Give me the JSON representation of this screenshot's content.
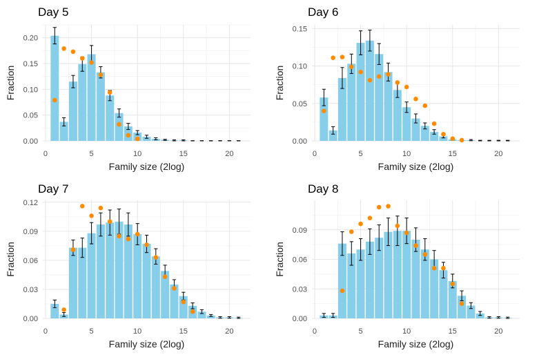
{
  "style": {
    "bar_color": "#87CEEB",
    "point_color": "#FF8C00",
    "error_color": "#000000",
    "grid_color": "#e6e6e6"
  },
  "chart_data": [
    {
      "type": "bar",
      "title": "Day 5",
      "xlabel": "Family size (2log)",
      "ylabel": "Fraction",
      "xlim": [
        -0.3,
        22.3
      ],
      "ylim": [
        0,
        0.225
      ],
      "xticks": [
        0,
        5,
        10,
        15,
        20
      ],
      "yticks": [
        0,
        0.05,
        0.1,
        0.15,
        0.2
      ],
      "ytick_labels": [
        "0.00",
        "0.05",
        "0.10",
        "0.15",
        "0.20"
      ],
      "grid": true,
      "x": [
        1,
        2,
        3,
        4,
        5,
        6,
        7,
        8,
        9,
        10,
        11,
        12,
        13,
        14,
        15,
        16,
        17,
        18,
        19,
        20,
        21
      ],
      "bar_values": [
        0.204,
        0.037,
        0.115,
        0.149,
        0.168,
        0.133,
        0.088,
        0.054,
        0.028,
        0.016,
        0.008,
        0.004,
        0.002,
        0.001,
        0.001,
        0,
        0,
        0,
        0,
        0,
        0
      ],
      "error": [
        0.016,
        0.008,
        0.012,
        0.014,
        0.017,
        0.011,
        0.01,
        0.008,
        0.006,
        0.004,
        0.003,
        0.002,
        0.001,
        0.001,
        0.001,
        0.0005,
        0.0005,
        0.0005,
        0.0005,
        0.0005,
        0.0005
      ],
      "point_x": [
        1,
        2,
        3,
        4,
        5,
        6,
        7,
        8,
        9,
        10
      ],
      "point_values": [
        0.079,
        0.179,
        0.173,
        0.16,
        0.152,
        0.128,
        0.094,
        0.032,
        0.011,
        0.004
      ]
    },
    {
      "type": "bar",
      "title": "Day 6",
      "xlabel": "Family size (2log)",
      "ylabel": "Fraction",
      "xlim": [
        -0.3,
        22.3
      ],
      "ylim": [
        0,
        0.155
      ],
      "xticks": [
        0,
        5,
        10,
        15,
        20
      ],
      "yticks": [
        0,
        0.05,
        0.1,
        0.15
      ],
      "ytick_labels": [
        "0.00",
        "0.05",
        "0.10",
        "0.15"
      ],
      "grid": true,
      "x": [
        1,
        2,
        3,
        4,
        5,
        6,
        7,
        8,
        9,
        10,
        11,
        12,
        13,
        14,
        15,
        16,
        17,
        18,
        19,
        20,
        21
      ],
      "bar_values": [
        0.058,
        0.014,
        0.084,
        0.103,
        0.131,
        0.134,
        0.116,
        0.092,
        0.068,
        0.045,
        0.03,
        0.02,
        0.012,
        0.006,
        0.002,
        0.001,
        0.001,
        0,
        0,
        0,
        0
      ],
      "error": [
        0.011,
        0.005,
        0.014,
        0.013,
        0.016,
        0.014,
        0.014,
        0.012,
        0.01,
        0.007,
        0.006,
        0.004,
        0.003,
        0.002,
        0.001,
        0.0008,
        0.0008,
        0.0008,
        0.0008,
        0.0008,
        0.0008
      ],
      "point_x": [
        1,
        2,
        3,
        4,
        5,
        6,
        7,
        8,
        9,
        10,
        11,
        12,
        13,
        14,
        15,
        16
      ],
      "point_values": [
        0.04,
        0.111,
        0.112,
        0.099,
        0.092,
        0.081,
        0.086,
        0.089,
        0.078,
        0.072,
        0.056,
        0.047,
        0.023,
        0.009,
        0.003,
        0.001
      ]
    },
    {
      "type": "bar",
      "title": "Day 7",
      "xlabel": "Family size (2log)",
      "ylabel": "Fraction",
      "xlim": [
        -0.3,
        22.3
      ],
      "ylim": [
        0,
        0.122
      ],
      "xticks": [
        0,
        5,
        10,
        15,
        20
      ],
      "yticks": [
        0,
        0.03,
        0.06,
        0.09,
        0.12
      ],
      "ytick_labels": [
        "0.00",
        "0.03",
        "0.06",
        "0.09",
        "0.12"
      ],
      "grid": true,
      "x": [
        1,
        2,
        3,
        4,
        5,
        6,
        7,
        8,
        9,
        10,
        11,
        12,
        13,
        14,
        15,
        16,
        17,
        18,
        19,
        20,
        21
      ],
      "bar_values": [
        0.015,
        0.004,
        0.073,
        0.073,
        0.088,
        0.097,
        0.099,
        0.1,
        0.097,
        0.087,
        0.077,
        0.064,
        0.049,
        0.035,
        0.023,
        0.013,
        0.007,
        0.003,
        0.001,
        0.001,
        0.0005
      ],
      "error": [
        0.004,
        0.002,
        0.008,
        0.01,
        0.011,
        0.012,
        0.013,
        0.013,
        0.012,
        0.011,
        0.009,
        0.008,
        0.006,
        0.005,
        0.004,
        0.003,
        0.002,
        0.001,
        0.0008,
        0.0008,
        0.0008
      ],
      "point_x": [
        2,
        3,
        4,
        5,
        6,
        7,
        8,
        9,
        10,
        11,
        12,
        13,
        14,
        15,
        16
      ],
      "point_values": [
        0.009,
        0.071,
        0.116,
        0.106,
        0.114,
        0.1,
        0.085,
        0.082,
        0.087,
        0.076,
        0.063,
        0.043,
        0.031,
        0.017,
        0.007
      ]
    },
    {
      "type": "bar",
      "title": "Day 8",
      "xlabel": "Family size (2log)",
      "ylabel": "Fraction",
      "xlim": [
        -0.3,
        22.3
      ],
      "ylim": [
        0,
        0.12
      ],
      "xticks": [
        0,
        5,
        10,
        15,
        20
      ],
      "yticks": [
        0,
        0.03,
        0.06,
        0.09
      ],
      "ytick_labels": [
        "0.00",
        "0.03",
        "0.06",
        "0.09"
      ],
      "grid": true,
      "x": [
        1,
        2,
        3,
        4,
        5,
        6,
        7,
        8,
        9,
        10,
        11,
        12,
        13,
        14,
        15,
        16,
        17,
        18,
        19,
        20,
        21
      ],
      "bar_values": [
        0.003,
        0.003,
        0.076,
        0.066,
        0.07,
        0.078,
        0.082,
        0.088,
        0.089,
        0.089,
        0.08,
        0.07,
        0.06,
        0.049,
        0.038,
        0.023,
        0.013,
        0.005,
        0.001,
        0.001,
        0.0005
      ],
      "error": [
        0.002,
        0.002,
        0.012,
        0.012,
        0.011,
        0.013,
        0.013,
        0.014,
        0.015,
        0.013,
        0.012,
        0.011,
        0.009,
        0.008,
        0.007,
        0.005,
        0.003,
        0.002,
        0.0008,
        0.0008,
        0.0008
      ],
      "point_x": [
        3,
        4,
        5,
        6,
        7,
        8,
        9,
        10,
        11,
        12,
        13,
        14,
        15,
        16
      ],
      "point_values": [
        0.028,
        0.088,
        0.096,
        0.102,
        0.113,
        0.114,
        0.094,
        0.087,
        0.074,
        0.065,
        0.051,
        0.051,
        0.035,
        0.015
      ]
    }
  ]
}
